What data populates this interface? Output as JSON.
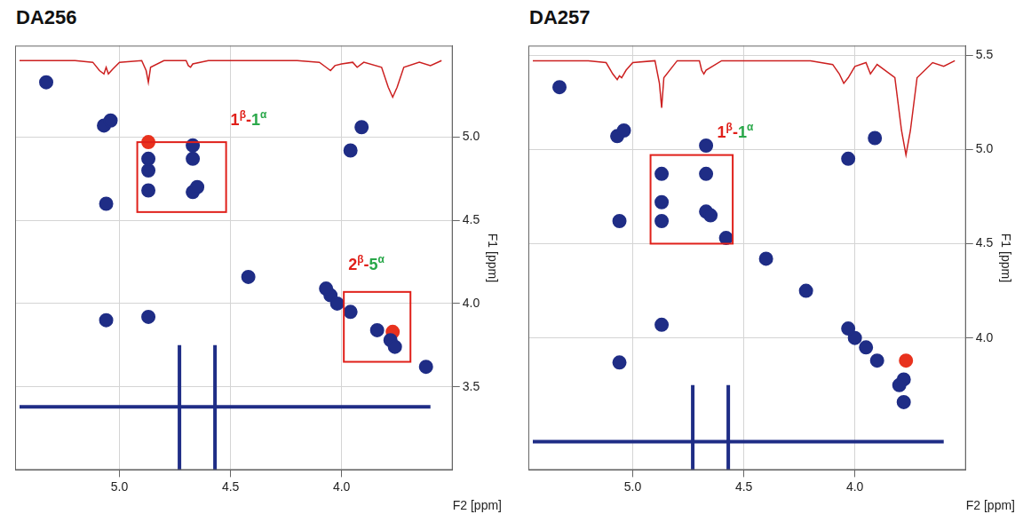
{
  "chart_data": [
    {
      "type": "scatter",
      "title": "DA256",
      "x_label": "F2 [ppm]",
      "y_label": "F1 [ppm]",
      "xlim": [
        5.47,
        3.5
      ],
      "xticks": [
        {
          "value": 5.0,
          "label": "5.0"
        },
        4.5,
        {
          "value": 4.0,
          "label": "4.0"
        }
      ],
      "ylim": [
        5.55,
        3.0
      ],
      "yticks": [
        3.5,
        {
          "value": 4.0,
          "label": "4.0"
        },
        4.5,
        {
          "value": 5.0,
          "label": "5.0"
        }
      ],
      "grid": true,
      "series": [
        {
          "type": "scatter",
          "color": "#1f2d86",
          "marker": "circle",
          "x": [
            5.33,
            5.07,
            5.04,
            4.87,
            4.87,
            4.87,
            4.67,
            4.65,
            4.67,
            4.67,
            5.06,
            5.06,
            4.87,
            4.05,
            4.02,
            3.96,
            3.84,
            3.78,
            3.76,
            3.62,
            3.96,
            3.91,
            4.42,
            4.07
          ],
          "y": [
            5.33,
            5.07,
            5.1,
            4.87,
            4.8,
            4.68,
            4.67,
            4.7,
            4.87,
            4.95,
            4.6,
            3.9,
            3.92,
            4.05,
            4.0,
            3.95,
            3.84,
            3.78,
            3.74,
            3.62,
            4.92,
            5.06,
            4.16,
            4.09
          ]
        },
        {
          "type": "scatter",
          "color": "#e8321e",
          "marker": "circle",
          "x": [
            4.87,
            3.77
          ],
          "y": [
            4.97,
            3.83
          ]
        },
        {
          "type": "line",
          "color": "#1f2d86",
          "marker": "none",
          "line_style": "solid",
          "x": [
            4.73,
            4.73
          ],
          "y": [
            3.0,
            3.75
          ]
        },
        {
          "type": "line",
          "color": "#1f2d86",
          "marker": "none",
          "line_style": "solid",
          "x": [
            4.57,
            4.57
          ],
          "y": [
            3.0,
            3.75
          ]
        },
        {
          "type": "line",
          "color": "#1f2d86",
          "marker": "none",
          "line_style": "solid",
          "x": [
            5.45,
            3.6
          ],
          "y": [
            3.38,
            3.38
          ]
        },
        {
          "type": "line",
          "color": "#cc2020",
          "marker": "none",
          "line_style": "solid",
          "x": [
            5.45,
            5.2,
            5.12,
            5.09,
            5.07,
            5.06,
            5.05,
            5.03,
            5.0,
            4.9,
            4.88,
            4.87,
            4.86,
            4.8,
            4.7,
            4.69,
            4.68,
            4.67,
            4.6,
            4.2,
            4.1,
            4.07,
            4.05,
            4.03,
            4.0,
            3.95,
            3.93,
            3.9,
            3.82,
            3.79,
            3.77,
            3.75,
            3.72,
            3.65,
            3.6,
            3.55
          ],
          "y": [
            5.46,
            5.46,
            5.45,
            5.4,
            5.38,
            5.42,
            5.38,
            5.41,
            5.45,
            5.46,
            5.4,
            5.33,
            5.42,
            5.46,
            5.46,
            5.43,
            5.42,
            5.44,
            5.46,
            5.46,
            5.45,
            5.42,
            5.4,
            5.43,
            5.44,
            5.45,
            5.42,
            5.45,
            5.42,
            5.3,
            5.24,
            5.3,
            5.42,
            5.45,
            5.43,
            5.46
          ]
        }
      ],
      "annotations": [
        {
          "box_x": [
            4.92,
            4.52
          ],
          "box_y": [
            4.55,
            4.97
          ],
          "box_color": "#e0201a",
          "x": 4.5,
          "y": 5.07,
          "text_parts": [
            {
              "text": "1β-",
              "color": "#e0201a"
            },
            {
              "text": "1α",
              "color": "#2aa84a"
            }
          ]
        },
        {
          "box_x": [
            3.99,
            3.69
          ],
          "box_y": [
            3.65,
            4.07
          ],
          "box_color": "#e0201a",
          "x": 3.97,
          "y": 4.2,
          "text_parts": [
            {
              "text": "2β-",
              "color": "#e0201a"
            },
            {
              "text": "5α",
              "color": "#2aa84a"
            }
          ]
        }
      ]
    },
    {
      "type": "scatter",
      "title": "DA257",
      "x_label": "F2 [ppm]",
      "y_label": "F1 [ppm]",
      "xlim": [
        5.47,
        3.5
      ],
      "xticks": [
        {
          "value": 5.0,
          "label": "5.0"
        },
        4.5,
        {
          "value": 4.0,
          "label": "4.0"
        }
      ],
      "ylim": [
        5.55,
        3.3
      ],
      "yticks": [
        {
          "value": 4.0,
          "label": "4.0"
        },
        4.5,
        {
          "value": 5.0,
          "label": "5.0"
        },
        5.5
      ],
      "grid": true,
      "series": [
        {
          "type": "scatter",
          "color": "#1f2d86",
          "marker": "circle",
          "x": [
            5.33,
            5.07,
            5.04,
            4.87,
            4.87,
            4.87,
            4.67,
            4.65,
            4.67,
            4.67,
            5.06,
            5.06,
            4.87,
            4.0,
            4.03,
            3.95,
            3.9,
            3.78,
            3.8,
            3.78,
            4.4,
            4.03,
            3.91,
            4.58,
            4.22
          ],
          "y": [
            5.33,
            5.07,
            5.1,
            4.87,
            4.72,
            4.62,
            4.67,
            4.65,
            4.87,
            5.02,
            4.62,
            3.87,
            4.07,
            4.0,
            4.05,
            3.95,
            3.88,
            3.78,
            3.75,
            3.66,
            4.42,
            4.95,
            5.06,
            4.53,
            4.25
          ]
        },
        {
          "type": "scatter",
          "color": "#e8321e",
          "marker": "circle",
          "x": [
            3.77
          ],
          "y": [
            3.88
          ]
        },
        {
          "type": "line",
          "color": "#1f2d86",
          "marker": "none",
          "line_style": "solid",
          "x": [
            4.73,
            4.73
          ],
          "y": [
            3.3,
            3.75
          ]
        },
        {
          "type": "line",
          "color": "#1f2d86",
          "marker": "none",
          "line_style": "solid",
          "x": [
            4.57,
            4.57
          ],
          "y": [
            3.3,
            3.75
          ]
        },
        {
          "type": "line",
          "color": "#1f2d86",
          "marker": "none",
          "line_style": "solid",
          "x": [
            5.45,
            3.6
          ],
          "y": [
            3.45,
            3.45
          ]
        },
        {
          "type": "line",
          "color": "#cc2020",
          "marker": "none",
          "line_style": "solid",
          "x": [
            5.45,
            5.2,
            5.12,
            5.09,
            5.07,
            5.06,
            5.05,
            5.03,
            5.0,
            4.9,
            4.88,
            4.87,
            4.86,
            4.8,
            4.7,
            4.69,
            4.68,
            4.67,
            4.6,
            4.2,
            4.1,
            4.07,
            4.05,
            4.03,
            4.0,
            3.95,
            3.93,
            3.9,
            3.82,
            3.79,
            3.77,
            3.75,
            3.72,
            3.65,
            3.6,
            3.55
          ],
          "y": [
            5.47,
            5.47,
            5.46,
            5.4,
            5.37,
            5.39,
            5.38,
            5.42,
            5.46,
            5.47,
            5.35,
            5.22,
            5.38,
            5.47,
            5.47,
            5.42,
            5.4,
            5.42,
            5.47,
            5.47,
            5.45,
            5.4,
            5.35,
            5.38,
            5.44,
            5.46,
            5.4,
            5.45,
            5.38,
            5.1,
            4.97,
            5.1,
            5.38,
            5.46,
            5.44,
            5.47
          ]
        }
      ],
      "annotations": [
        {
          "box_x": [
            4.92,
            4.55
          ],
          "box_y": [
            4.5,
            4.97
          ],
          "box_color": "#e0201a",
          "x": 4.62,
          "y": 5.06,
          "text_parts": [
            {
              "text": "1β-",
              "color": "#e0201a"
            },
            {
              "text": "1α",
              "color": "#2aa84a"
            }
          ]
        }
      ]
    }
  ]
}
